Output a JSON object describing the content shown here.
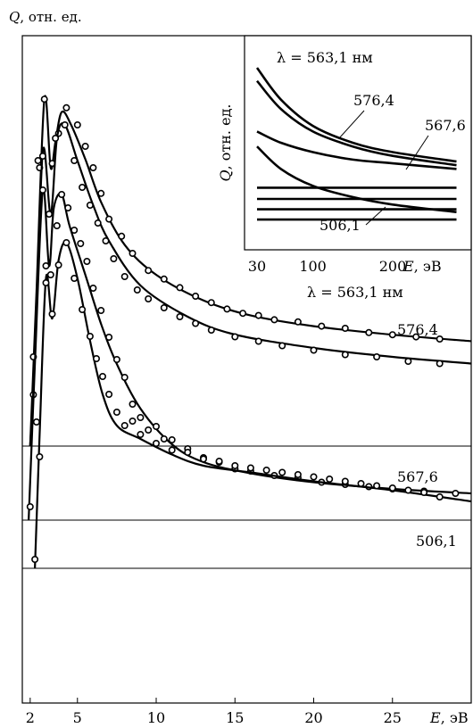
{
  "chart_data": [
    {
      "type": "line",
      "ylabel": "Q, отн. ед.",
      "xlabel": "E, эВ",
      "xlim": [
        1.5,
        30
      ],
      "x_ticks": [
        "2",
        "5",
        "10",
        "15",
        "20",
        "25"
      ],
      "grid": false,
      "markers": "open circles",
      "series": [
        {
          "name": "λ = 563,1 нм",
          "baseline": 1.0,
          "curve_x": [
            2,
            2.4,
            2.9,
            3.3,
            3.6,
            4.0,
            4.6,
            5.5,
            6.5,
            8,
            10,
            13,
            16,
            20,
            25,
            30
          ],
          "curve_y": [
            1.0,
            4.6,
            9.1,
            7.5,
            8.1,
            8.8,
            8.5,
            7.7,
            6.7,
            5.7,
            5.0,
            4.4,
            4.05,
            3.8,
            3.6,
            3.45
          ],
          "points_x": [
            2.2,
            2.6,
            2.9,
            3.4,
            3.8,
            4.3,
            5.0,
            5.5,
            6.0,
            6.5,
            7.0,
            7.8,
            8.5,
            9.5,
            10.5,
            11.5,
            12.5,
            13.5,
            14.5,
            15.5,
            16.5,
            17.5,
            19,
            20.5,
            22,
            23.5,
            25,
            26.5,
            28
          ],
          "points_y": [
            2.2,
            7.5,
            9.1,
            7.6,
            8.3,
            8.9,
            8.5,
            8.0,
            7.5,
            6.9,
            6.3,
            5.9,
            5.5,
            5.1,
            4.9,
            4.7,
            4.5,
            4.35,
            4.2,
            4.1,
            4.05,
            3.95,
            3.9,
            3.8,
            3.75,
            3.65,
            3.6,
            3.55,
            3.5
          ]
        },
        {
          "name": "576,4",
          "baseline": 1.0,
          "curve_x": [
            2,
            2.3,
            2.8,
            3.3,
            3.7,
            4.2,
            5.0,
            6.0,
            7,
            9,
            12,
            15,
            20,
            25,
            30
          ],
          "curve_y": [
            1.0,
            3.0,
            7.6,
            6.2,
            7.9,
            8.2,
            7.4,
            6.4,
            5.6,
            4.6,
            3.9,
            3.5,
            3.2,
            3.0,
            2.85
          ],
          "points_x": [
            2.2,
            2.5,
            2.8,
            3.2,
            3.6,
            4.2,
            4.8,
            5.3,
            5.8,
            6.3,
            6.8,
            7.3,
            8.0,
            8.8,
            9.5,
            10.5,
            11.5,
            12.5,
            13.5,
            15,
            16.5,
            18,
            20,
            22,
            24,
            26,
            28
          ],
          "points_y": [
            3.0,
            7.4,
            7.5,
            6.2,
            7.9,
            8.2,
            7.4,
            6.8,
            6.4,
            6.0,
            5.6,
            5.2,
            4.8,
            4.5,
            4.3,
            4.1,
            3.9,
            3.75,
            3.6,
            3.45,
            3.35,
            3.25,
            3.15,
            3.05,
            3.0,
            2.9,
            2.85
          ]
        },
        {
          "name": "567,6",
          "baseline": 1.0,
          "curve_x": [
            1.9,
            2.3,
            2.8,
            3.2,
            3.5,
            4.0,
            4.5,
            5.5,
            6.5,
            7.5,
            9,
            11,
            13,
            16,
            20,
            25,
            30
          ],
          "curve_y": [
            1.0,
            4.5,
            8.4,
            6.7,
            8.0,
            8.3,
            7.6,
            6.5,
            5.4,
            4.5,
            3.5,
            2.7,
            2.3,
            2.05,
            1.85,
            1.7,
            1.6
          ],
          "points_x": [
            2.0,
            2.4,
            2.8,
            3.0,
            3.3,
            3.7,
            4.0,
            4.4,
            4.8,
            5.2,
            5.6,
            6.0,
            6.5,
            7.0,
            7.5,
            8.0,
            8.5,
            9.0,
            10.0,
            11.0,
            12.0,
            13.0,
            14.0,
            15.0,
            16.0,
            17.5,
            19.0,
            20.5,
            22.0,
            23.5,
            25.0,
            27.0,
            29.0
          ],
          "points_y": [
            1.3,
            3.2,
            8.4,
            6.7,
            6.5,
            7.6,
            8.3,
            8.0,
            7.5,
            7.2,
            6.8,
            6.2,
            5.7,
            5.1,
            4.6,
            4.2,
            3.6,
            3.3,
            3.1,
            2.8,
            2.6,
            2.4,
            2.3,
            2.15,
            2.1,
            2.0,
            1.95,
            1.85,
            1.8,
            1.75,
            1.7,
            1.65,
            1.6
          ]
        },
        {
          "name": "506,1",
          "baseline": 0.0,
          "curve_x": [
            2.3,
            2.6,
            3.0,
            3.4,
            3.8,
            4.3,
            5.0,
            5.8,
            6.6,
            7.5,
            9,
            11,
            13,
            16,
            20,
            25,
            30
          ],
          "curve_y": [
            0.0,
            3.0,
            6.5,
            5.6,
            6.9,
            7.3,
            6.5,
            5.1,
            3.9,
            3.2,
            2.9,
            2.55,
            2.3,
            2.15,
            1.95,
            1.75,
            1.5
          ],
          "points_x": [
            2.3,
            2.6,
            3.0,
            3.4,
            3.8,
            4.3,
            4.8,
            5.3,
            5.8,
            6.2,
            6.6,
            7.0,
            7.5,
            8.0,
            8.5,
            9.0,
            9.5,
            10.0,
            10.5,
            11.0,
            12.0,
            13.0,
            14.0,
            15.0,
            16.0,
            17.0,
            18.0,
            19.0,
            20.0,
            21.0,
            22.0,
            23.0,
            24.0,
            25.0,
            26.0,
            27.0,
            28.0
          ],
          "points_y": [
            0.2,
            2.5,
            6.4,
            5.7,
            6.8,
            7.3,
            6.5,
            5.8,
            5.2,
            4.7,
            4.3,
            3.9,
            3.5,
            3.2,
            3.3,
            3.0,
            3.1,
            2.8,
            2.9,
            2.65,
            2.6,
            2.45,
            2.4,
            2.3,
            2.25,
            2.2,
            2.15,
            2.1,
            2.05,
            2.0,
            1.95,
            1.9,
            1.85,
            1.8,
            1.75,
            1.7,
            1.6
          ]
        }
      ],
      "annotations": [
        {
          "text": "λ = 563,1 нм",
          "series": 0
        },
        {
          "text": "576,4",
          "series": 1
        },
        {
          "text": "567,6",
          "series": 2
        },
        {
          "text": "506,1",
          "series": 3
        }
      ]
    },
    {
      "type": "line",
      "position": "inset top-right",
      "ylabel": "Q, отн. ед.",
      "xlabel": "E, эВ",
      "xlim": [
        30,
        280
      ],
      "x_ticks": [
        "30",
        "100",
        "200"
      ],
      "x_tick_values": [
        30,
        100,
        200
      ],
      "ylim": [
        0,
        10
      ],
      "series": [
        {
          "name": "λ = 563,1 нм",
          "x": [
            30,
            60,
            100,
            150,
            200,
            280
          ],
          "y": [
            9.0,
            7.3,
            5.9,
            5.0,
            4.5,
            4.0
          ]
        },
        {
          "name": "576,4",
          "x": [
            30,
            60,
            100,
            150,
            200,
            280
          ],
          "y": [
            8.3,
            6.8,
            5.6,
            4.8,
            4.3,
            3.8
          ]
        },
        {
          "name": "567,6",
          "x": [
            30,
            60,
            100,
            150,
            200,
            280
          ],
          "y": [
            5.6,
            5.0,
            4.5,
            4.1,
            3.9,
            3.6
          ]
        },
        {
          "name": "506,1",
          "x": [
            30,
            60,
            100,
            150,
            200,
            280
          ],
          "y": [
            4.8,
            3.6,
            2.7,
            2.1,
            1.7,
            1.3
          ]
        },
        {
          "name": "",
          "x": [
            30,
            280
          ],
          "y": [
            2.6,
            2.6
          ]
        },
        {
          "name": "",
          "x": [
            30,
            280
          ],
          "y": [
            2.0,
            2.0
          ]
        },
        {
          "name": "",
          "x": [
            30,
            280
          ],
          "y": [
            1.45,
            1.45
          ]
        },
        {
          "name": "",
          "x": [
            30,
            280
          ],
          "y": [
            0.9,
            0.9
          ]
        }
      ],
      "annotations": [
        {
          "text": "λ = 563,1 нм",
          "series": 0
        },
        {
          "text": "576,4",
          "series": 1
        },
        {
          "text": "567,6",
          "series": 2
        },
        {
          "text": "506,1",
          "series": 3
        }
      ]
    }
  ]
}
